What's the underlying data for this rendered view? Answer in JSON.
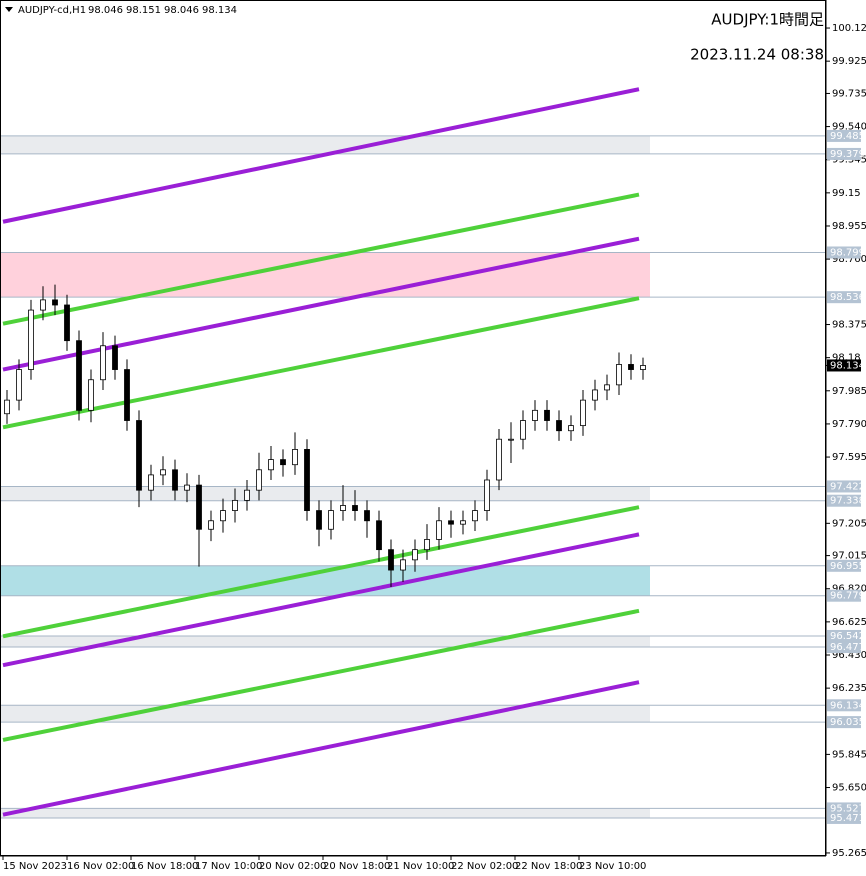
{
  "chart_data": {
    "type": "candlestick",
    "header": {
      "symbol": "AUDJPY-cd,H1",
      "ohlc": [
        98.046,
        98.151,
        98.046,
        98.134
      ]
    },
    "annotations": [
      "AUDJPY:1時間足",
      "2023.11.24 08:38"
    ],
    "ylim": [
      95.247,
      100.285
    ],
    "yticks": [
      {
        "value": 100.12,
        "label": "100.120"
      },
      99.925,
      99.735,
      {
        "value": 99.54,
        "label": "99.540"
      },
      99.345,
      99.15,
      98.955,
      {
        "value": 98.76,
        "label": "98.760"
      },
      98.375,
      98.18,
      97.985,
      {
        "value": 97.79,
        "label": "97.790"
      },
      97.595,
      97.205,
      97.015,
      {
        "value": 96.82,
        "label": "96.820"
      },
      96.625,
      {
        "value": 96.43,
        "label": "96.430"
      },
      96.235,
      95.845,
      {
        "value": 95.65,
        "label": "95.650"
      },
      95.265
    ],
    "xlim": [
      -0.75,
      205.75
    ],
    "xticks": [
      {
        "value": 0,
        "label": "15 Nov 2023"
      },
      {
        "value": 16,
        "label": "16 Nov 02:00"
      },
      {
        "value": 32,
        "label": "16 Nov 18:00"
      },
      {
        "value": 48,
        "label": "17 Nov 10:00"
      },
      {
        "value": 64,
        "label": "20 Nov 02:00"
      },
      {
        "value": 80,
        "label": "20 Nov 18:00"
      },
      {
        "value": 96,
        "label": "21 Nov 10:00"
      },
      {
        "value": 112,
        "label": "22 Nov 02:00"
      },
      {
        "value": 128,
        "label": "22 Nov 18:00"
      },
      {
        "value": 144,
        "label": "23 Nov 10:00"
      }
    ],
    "x": [
      1,
      4,
      7,
      10,
      13,
      16,
      19,
      22,
      25,
      28,
      31,
      34,
      37,
      40,
      43,
      46,
      49,
      52,
      55,
      58,
      61,
      64,
      67,
      70,
      73,
      76,
      79,
      82,
      85,
      88,
      91,
      94,
      97,
      100,
      103,
      106,
      109,
      112,
      115,
      118,
      121,
      124,
      127,
      130,
      133,
      136,
      139,
      142,
      145,
      148,
      151,
      154,
      157,
      160
    ],
    "candles": [
      [
        97.85,
        97.99,
        97.79,
        97.93
      ],
      [
        97.93,
        98.17,
        97.87,
        98.11
      ],
      [
        98.11,
        98.52,
        98.05,
        98.46
      ],
      [
        98.46,
        98.6,
        98.4,
        98.52
      ],
      [
        98.52,
        98.61,
        98.43,
        98.49
      ],
      [
        98.49,
        98.55,
        98.22,
        98.28
      ],
      [
        98.28,
        98.34,
        97.81,
        97.87
      ],
      [
        97.87,
        98.11,
        97.8,
        98.05
      ],
      [
        98.05,
        98.33,
        97.99,
        98.25
      ],
      [
        98.25,
        98.31,
        98.05,
        98.11
      ],
      [
        98.11,
        98.17,
        97.75,
        97.81
      ],
      [
        97.81,
        97.87,
        97.3,
        97.4
      ],
      [
        97.4,
        97.55,
        97.34,
        97.49
      ],
      [
        97.49,
        97.6,
        97.43,
        97.52
      ],
      [
        97.52,
        97.58,
        97.34,
        97.4
      ],
      [
        97.4,
        97.5,
        97.33,
        97.43
      ],
      [
        97.43,
        97.49,
        96.95,
        97.17
      ],
      [
        97.17,
        97.28,
        97.1,
        97.22
      ],
      [
        97.22,
        97.35,
        97.15,
        97.28
      ],
      [
        97.28,
        97.41,
        97.21,
        97.34
      ],
      [
        97.34,
        97.46,
        97.28,
        97.4
      ],
      [
        97.4,
        97.62,
        97.34,
        97.52
      ],
      [
        97.52,
        97.66,
        97.46,
        97.58
      ],
      [
        97.58,
        97.64,
        97.48,
        97.55
      ],
      [
        97.55,
        97.74,
        97.49,
        97.64
      ],
      [
        97.64,
        97.7,
        97.22,
        97.28
      ],
      [
        97.28,
        97.34,
        97.07,
        97.17
      ],
      [
        97.17,
        97.34,
        97.11,
        97.28
      ],
      [
        97.28,
        97.43,
        97.22,
        97.31
      ],
      [
        97.31,
        97.4,
        97.22,
        97.28
      ],
      [
        97.28,
        97.34,
        97.12,
        97.22
      ],
      [
        97.22,
        97.28,
        96.98,
        97.05
      ],
      [
        97.05,
        97.11,
        96.83,
        96.93
      ],
      [
        96.93,
        97.05,
        96.86,
        96.99
      ],
      [
        96.99,
        97.11,
        96.92,
        97.05
      ],
      [
        97.05,
        97.2,
        96.99,
        97.11
      ],
      [
        97.11,
        97.3,
        97.05,
        97.22
      ],
      [
        97.22,
        97.28,
        97.12,
        97.2
      ],
      [
        97.2,
        97.28,
        97.14,
        97.22
      ],
      [
        97.22,
        97.34,
        97.16,
        97.28
      ],
      [
        97.28,
        97.52,
        97.22,
        97.46
      ],
      [
        97.46,
        97.76,
        97.4,
        97.7
      ],
      [
        97.7,
        97.8,
        97.56,
        97.7
      ],
      [
        97.7,
        97.87,
        97.64,
        97.81
      ],
      [
        97.81,
        97.93,
        97.75,
        97.87
      ],
      [
        97.87,
        97.93,
        97.75,
        97.81
      ],
      [
        97.81,
        97.87,
        97.69,
        97.75
      ],
      [
        97.75,
        97.84,
        97.69,
        97.78
      ],
      [
        97.78,
        97.99,
        97.72,
        97.93
      ],
      [
        97.93,
        98.05,
        97.87,
        97.99
      ],
      [
        97.99,
        98.08,
        97.93,
        98.02
      ],
      [
        98.02,
        98.21,
        97.96,
        98.14
      ],
      [
        98.14,
        98.2,
        98.05,
        98.11
      ],
      [
        98.11,
        98.18,
        98.05,
        98.134
      ]
    ],
    "zones": [
      {
        "top": 99.485,
        "bottom": 99.379,
        "color": "#e9ebee"
      },
      {
        "top": 98.799,
        "bottom": 98.536,
        "color": "#ffd1dc"
      },
      {
        "top": 97.422,
        "bottom": 97.338,
        "color": "#e9ebee"
      },
      {
        "top": 96.955,
        "bottom": 96.779,
        "color": "#b0dfe6"
      },
      {
        "top": 96.542,
        "bottom": 96.477,
        "color": "#e9ebee"
      },
      {
        "top": 96.134,
        "bottom": 96.035,
        "color": "#e9ebee"
      },
      {
        "top": 95.527,
        "bottom": 95.471,
        "color": "#e9ebee"
      }
    ],
    "trendlines": [
      {
        "color": "#9a1fd6",
        "x": [
          0,
          159
        ],
        "y": [
          98.98,
          99.76
        ]
      },
      {
        "color": "#9a1fd6",
        "x": [
          0,
          159
        ],
        "y": [
          98.11,
          98.88
        ]
      },
      {
        "color": "#9a1fd6",
        "x": [
          0,
          159
        ],
        "y": [
          96.37,
          97.14
        ]
      },
      {
        "color": "#9a1fd6",
        "x": [
          0,
          159
        ],
        "y": [
          95.49,
          96.27
        ]
      },
      {
        "color": "#4fd13a",
        "x": [
          0,
          159
        ],
        "y": [
          98.38,
          99.14
        ]
      },
      {
        "color": "#4fd13a",
        "x": [
          0,
          159
        ],
        "y": [
          97.77,
          98.53
        ]
      },
      {
        "color": "#4fd13a",
        "x": [
          0,
          159
        ],
        "y": [
          96.54,
          97.3
        ]
      },
      {
        "color": "#4fd13a",
        "x": [
          0,
          159
        ],
        "y": [
          95.93,
          96.69
        ]
      }
    ],
    "last_price": 98.134
  }
}
